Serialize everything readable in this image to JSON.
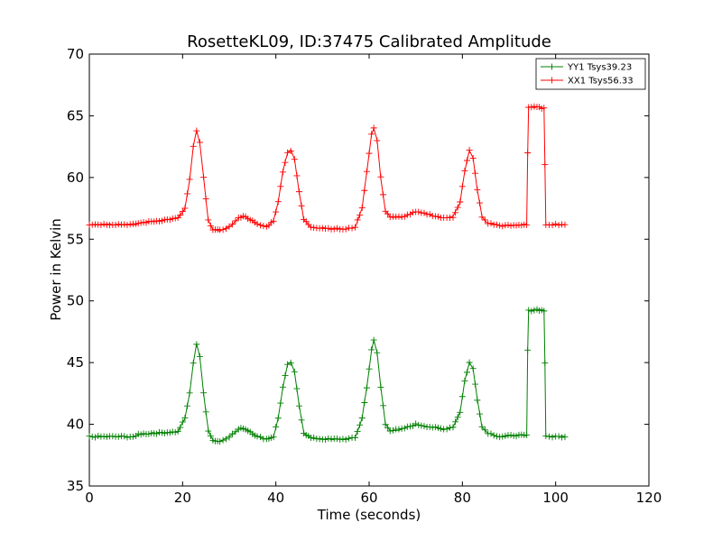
{
  "chart_data": {
    "type": "line",
    "title": "RosetteKL09, ID:37475 Calibrated Amplitude",
    "xlabel": "Time (seconds)",
    "ylabel": "Power in Kelvin",
    "xlim": [
      0,
      120
    ],
    "ylim": [
      35,
      70
    ],
    "xticks": [
      0,
      20,
      40,
      60,
      80,
      100,
      120
    ],
    "yticks": [
      35,
      40,
      45,
      50,
      55,
      60,
      65,
      70
    ],
    "grid": false,
    "legend": "top-right",
    "marker": "+",
    "series": [
      {
        "name": "YY1 Tsys39.23",
        "color": "#008000",
        "points": [
          [
            0,
            39.0
          ],
          [
            5,
            39.0
          ],
          [
            10,
            39.0
          ],
          [
            10.5,
            39.2
          ],
          [
            15,
            39.3
          ],
          [
            19,
            39.4
          ],
          [
            20.5,
            40.5
          ],
          [
            21.5,
            42.5
          ],
          [
            22.3,
            45.0
          ],
          [
            23,
            46.5
          ],
          [
            23.7,
            45.5
          ],
          [
            24.5,
            42.5
          ],
          [
            25.5,
            39.5
          ],
          [
            26.5,
            38.7
          ],
          [
            28,
            38.6
          ],
          [
            30,
            39.0
          ],
          [
            32,
            39.6
          ],
          [
            33,
            39.7
          ],
          [
            34.5,
            39.4
          ],
          [
            36,
            39.0
          ],
          [
            38,
            38.8
          ],
          [
            39.5,
            39.0
          ],
          [
            40.5,
            40.5
          ],
          [
            41.5,
            43.0
          ],
          [
            42.5,
            44.8
          ],
          [
            43.2,
            45.0
          ],
          [
            44,
            44.2
          ],
          [
            45,
            41.5
          ],
          [
            46,
            39.3
          ],
          [
            47.5,
            38.9
          ],
          [
            50,
            38.8
          ],
          [
            55,
            38.8
          ],
          [
            57,
            38.9
          ],
          [
            58.5,
            40.5
          ],
          [
            59.5,
            43.0
          ],
          [
            60.5,
            46.0
          ],
          [
            61,
            46.8
          ],
          [
            61.7,
            45.8
          ],
          [
            62.5,
            43.0
          ],
          [
            63.5,
            40.0
          ],
          [
            64.5,
            39.5
          ],
          [
            67,
            39.6
          ],
          [
            70,
            40.0
          ],
          [
            73,
            39.8
          ],
          [
            76,
            39.6
          ],
          [
            78,
            39.8
          ],
          [
            79.5,
            41.0
          ],
          [
            80.5,
            43.5
          ],
          [
            81.5,
            45.0
          ],
          [
            82.3,
            44.5
          ],
          [
            83.2,
            42.0
          ],
          [
            84.2,
            39.8
          ],
          [
            85.5,
            39.3
          ],
          [
            88,
            39.0
          ],
          [
            91,
            39.1
          ],
          [
            93.8,
            39.1
          ],
          [
            94,
            46.0
          ],
          [
            94.2,
            49.2
          ],
          [
            96,
            49.3
          ],
          [
            97.5,
            49.2
          ],
          [
            97.7,
            45.0
          ],
          [
            97.9,
            39.0
          ],
          [
            100,
            39.0
          ],
          [
            102,
            39.0
          ]
        ]
      },
      {
        "name": "XX1 Tsys56.33",
        "color": "#ff0000",
        "points": [
          [
            0,
            56.2
          ],
          [
            5,
            56.2
          ],
          [
            10,
            56.2
          ],
          [
            10.5,
            56.3
          ],
          [
            15,
            56.5
          ],
          [
            19,
            56.7
          ],
          [
            20.5,
            57.5
          ],
          [
            21.5,
            59.8
          ],
          [
            22.3,
            62.5
          ],
          [
            23,
            63.8
          ],
          [
            23.7,
            62.8
          ],
          [
            24.5,
            60.0
          ],
          [
            25.5,
            56.5
          ],
          [
            26.5,
            55.8
          ],
          [
            28,
            55.7
          ],
          [
            30,
            56.0
          ],
          [
            32,
            56.7
          ],
          [
            33,
            56.9
          ],
          [
            34.5,
            56.6
          ],
          [
            36,
            56.2
          ],
          [
            38,
            56.0
          ],
          [
            39.5,
            56.5
          ],
          [
            40.5,
            58.0
          ],
          [
            41.5,
            60.5
          ],
          [
            42.5,
            62.0
          ],
          [
            43.2,
            62.2
          ],
          [
            44,
            61.5
          ],
          [
            45,
            58.8
          ],
          [
            46,
            56.6
          ],
          [
            47.5,
            56.0
          ],
          [
            50,
            55.9
          ],
          [
            55,
            55.8
          ],
          [
            57,
            56.0
          ],
          [
            58.5,
            57.5
          ],
          [
            59.5,
            60.5
          ],
          [
            60.5,
            63.5
          ],
          [
            61,
            64.0
          ],
          [
            61.7,
            63.0
          ],
          [
            62.5,
            60.0
          ],
          [
            63.5,
            57.3
          ],
          [
            64.5,
            56.8
          ],
          [
            67,
            56.8
          ],
          [
            70,
            57.2
          ],
          [
            73,
            57.0
          ],
          [
            76,
            56.7
          ],
          [
            78,
            56.8
          ],
          [
            79.5,
            58.0
          ],
          [
            80.5,
            60.5
          ],
          [
            81.5,
            62.2
          ],
          [
            82.3,
            61.6
          ],
          [
            83.2,
            59.0
          ],
          [
            84.2,
            56.8
          ],
          [
            85.5,
            56.3
          ],
          [
            88,
            56.1
          ],
          [
            91,
            56.1
          ],
          [
            93.8,
            56.2
          ],
          [
            94,
            62.0
          ],
          [
            94.2,
            65.7
          ],
          [
            96,
            65.7
          ],
          [
            97.5,
            65.6
          ],
          [
            97.7,
            61.0
          ],
          [
            97.9,
            56.2
          ],
          [
            100,
            56.2
          ],
          [
            102,
            56.2
          ]
        ]
      }
    ]
  }
}
